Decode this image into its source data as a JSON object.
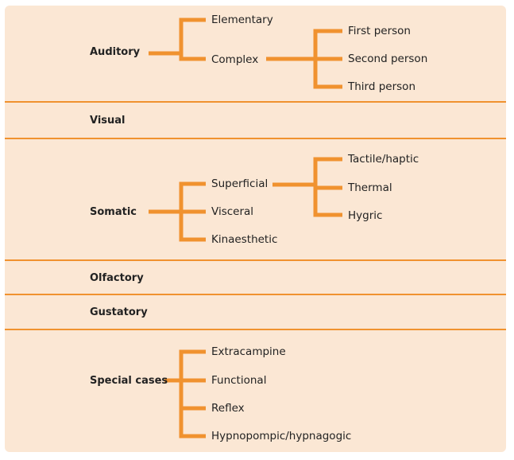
{
  "diagram": {
    "categories": [
      {
        "id": "auditory",
        "label": "Auditory",
        "children": [
          {
            "label": "Elementary"
          },
          {
            "label": "Complex",
            "children": [
              "First person",
              "Second person",
              "Third person"
            ]
          }
        ]
      },
      {
        "id": "visual",
        "label": "Visual",
        "children": []
      },
      {
        "id": "somatic",
        "label": "Somatic",
        "children": [
          {
            "label": "Superficial",
            "children": [
              "Tactile/haptic",
              "Thermal",
              "Hygric"
            ]
          },
          {
            "label": "Visceral"
          },
          {
            "label": "Kinaesthetic"
          }
        ]
      },
      {
        "id": "olfactory",
        "label": "Olfactory",
        "children": []
      },
      {
        "id": "gustatory",
        "label": "Gustatory",
        "children": []
      },
      {
        "id": "special-cases",
        "label": "Special cases",
        "children": [
          {
            "label": "Extracampine"
          },
          {
            "label": "Functional"
          },
          {
            "label": "Reflex"
          },
          {
            "label": "Hypnopompic/hypnagogic"
          }
        ]
      }
    ]
  },
  "colors": {
    "panel_background": "#fbe7d4",
    "connector": "#f0922f",
    "text": "#222222"
  }
}
